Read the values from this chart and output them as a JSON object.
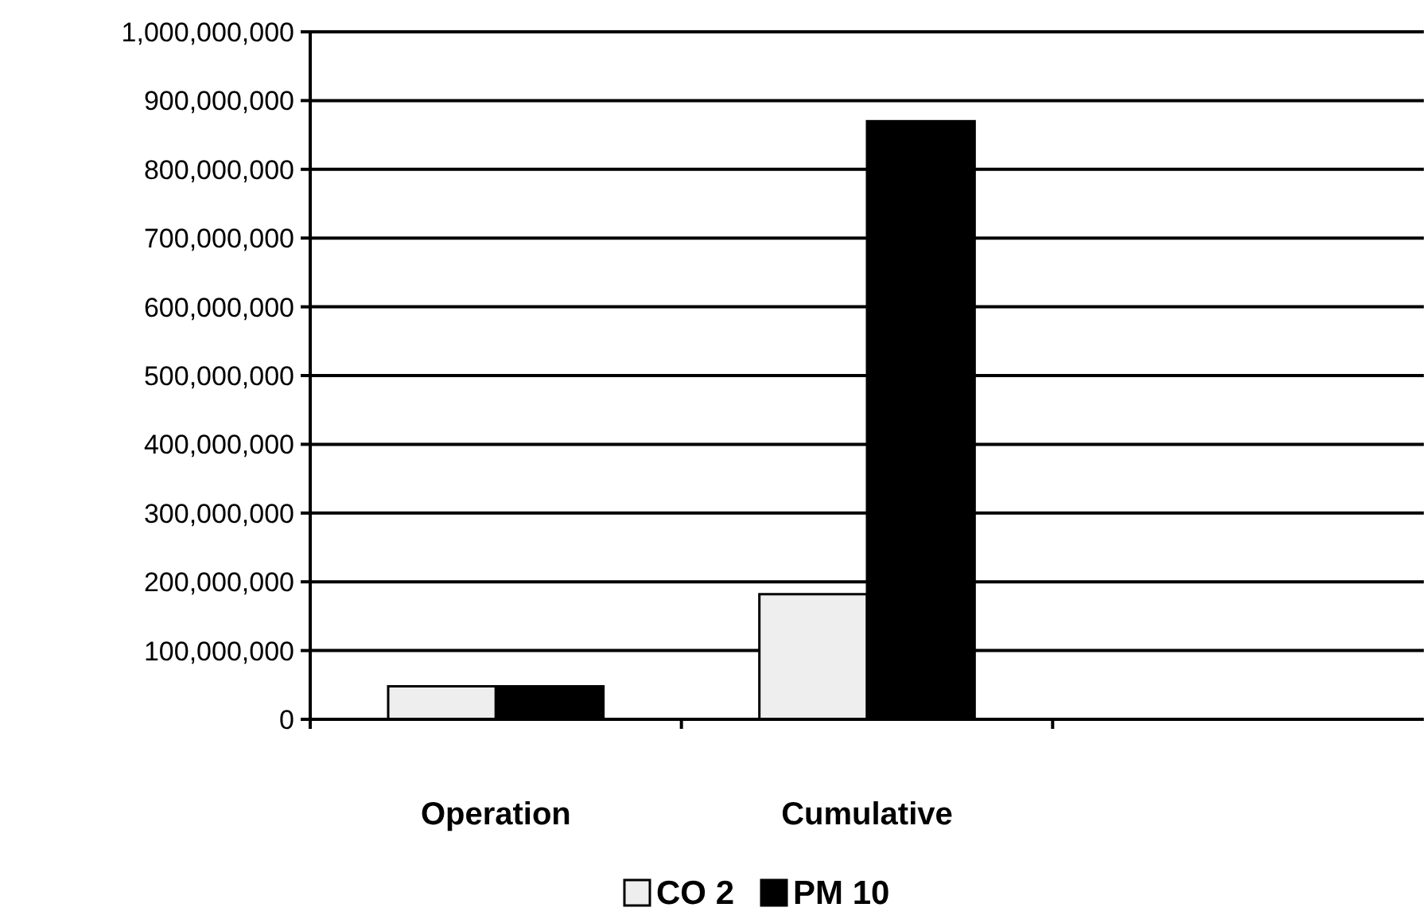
{
  "chart_data": {
    "type": "bar",
    "categories": [
      "Operation",
      "Cumulative",
      null
    ],
    "series": [
      {
        "name": "CO 2",
        "color": "#eeeeee",
        "values": [
          48000000,
          182000000,
          null
        ]
      },
      {
        "name": "PM 10",
        "color": "#000000",
        "values": [
          48000000,
          870000000,
          null
        ]
      }
    ],
    "ylim": [
      0,
      1000000000
    ],
    "yticks": [
      {
        "value": 0,
        "label": "0"
      },
      {
        "value": 100000000,
        "label": "100,000,000"
      },
      {
        "value": 200000000,
        "label": "200,000,000"
      },
      {
        "value": 300000000,
        "label": "300,000,000"
      },
      {
        "value": 400000000,
        "label": "400,000,000"
      },
      {
        "value": 500000000,
        "label": "500,000,000"
      },
      {
        "value": 600000000,
        "label": "600,000,000"
      },
      {
        "value": 700000000,
        "label": "700,000,000"
      },
      {
        "value": 800000000,
        "label": "800,000,000"
      },
      {
        "value": 900000000,
        "label": "900,000,000"
      },
      {
        "value": 1000000000,
        "label": "1,000,000,000"
      }
    ],
    "grid": "y",
    "legend": "bottom"
  }
}
